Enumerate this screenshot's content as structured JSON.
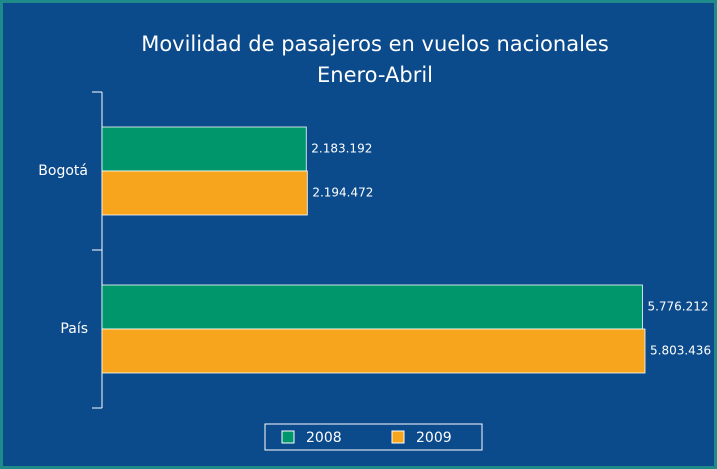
{
  "chart_data": {
    "type": "hbar",
    "title": "Movilidad de pasajeros en vuelos nacionales",
    "subtitle": "Enero-Abril",
    "categories": [
      "Bogotá",
      "País"
    ],
    "series": [
      {
        "name": "2008",
        "color": "#00966c",
        "values": [
          2183192,
          5776212
        ],
        "value_labels": [
          "2.183.192",
          "5.776.212"
        ]
      },
      {
        "name": "2009",
        "color": "#f7a51c",
        "values": [
          2194472,
          5803436
        ],
        "value_labels": [
          "2.194.472",
          "5.803.436"
        ]
      }
    ],
    "legend": "bottom"
  }
}
